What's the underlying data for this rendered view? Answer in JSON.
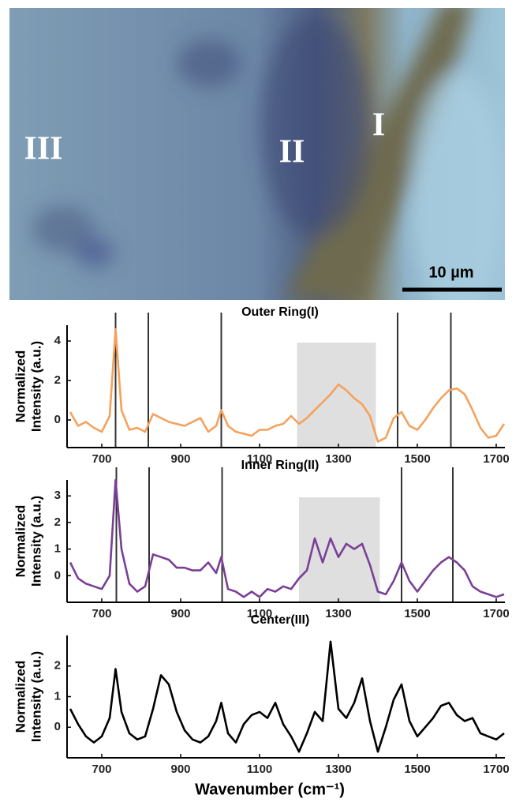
{
  "image": {
    "regions": [
      "III",
      "II",
      "I"
    ],
    "scale_bar": "10 µm"
  },
  "chart_data": [
    {
      "type": "line",
      "title": "Outer Ring(I)",
      "ylabel": [
        "Normalized",
        "Intensity (a.u.)"
      ],
      "color": "#f5a15c",
      "x": [
        620,
        640,
        660,
        680,
        700,
        720,
        735,
        750,
        770,
        790,
        810,
        830,
        850,
        870,
        890,
        910,
        930,
        950,
        970,
        990,
        1003,
        1020,
        1040,
        1060,
        1080,
        1100,
        1120,
        1140,
        1160,
        1180,
        1200,
        1220,
        1240,
        1260,
        1280,
        1300,
        1320,
        1340,
        1360,
        1380,
        1400,
        1420,
        1440,
        1460,
        1480,
        1500,
        1520,
        1540,
        1560,
        1580,
        1600,
        1620,
        1640,
        1660,
        1680,
        1700,
        1720
      ],
      "values": [
        0.4,
        -0.3,
        -0.1,
        -0.4,
        -0.6,
        0.2,
        4.6,
        0.5,
        -0.5,
        -0.4,
        -0.6,
        0.3,
        0.1,
        -0.1,
        -0.2,
        -0.3,
        -0.1,
        0.1,
        -0.6,
        -0.3,
        0.5,
        -0.3,
        -0.6,
        -0.7,
        -0.8,
        -0.5,
        -0.5,
        -0.3,
        -0.2,
        0.2,
        -0.2,
        0.1,
        0.5,
        0.9,
        1.3,
        1.8,
        1.5,
        1.1,
        0.8,
        0.2,
        -1.1,
        -0.9,
        0.1,
        0.4,
        -0.3,
        -0.5,
        0.0,
        0.6,
        1.1,
        1.5,
        1.6,
        1.3,
        0.5,
        -0.4,
        -0.9,
        -0.8,
        -0.2
      ],
      "vlines": [
        735,
        818,
        1003,
        1450,
        1585
      ],
      "span": [
        1195,
        1395
      ],
      "xlim": [
        612,
        1722
      ],
      "ylim": [
        -1.4,
        4.8
      ],
      "xticks": [
        700,
        900,
        1100,
        1300,
        1500,
        1700
      ],
      "yticks": [
        0,
        2,
        4
      ]
    },
    {
      "type": "line",
      "title": "Inner Ring(II)",
      "ylabel": [
        "Normalized",
        "Intensity (a.u.)"
      ],
      "color": "#7a3f96",
      "x": [
        620,
        640,
        660,
        680,
        700,
        720,
        735,
        750,
        770,
        790,
        810,
        830,
        850,
        870,
        890,
        910,
        930,
        950,
        970,
        990,
        1003,
        1020,
        1040,
        1060,
        1080,
        1100,
        1120,
        1140,
        1160,
        1180,
        1200,
        1220,
        1240,
        1260,
        1280,
        1300,
        1320,
        1340,
        1360,
        1380,
        1400,
        1420,
        1440,
        1460,
        1480,
        1500,
        1520,
        1540,
        1560,
        1580,
        1600,
        1620,
        1640,
        1660,
        1680,
        1700,
        1720
      ],
      "values": [
        0.5,
        -0.1,
        -0.3,
        -0.4,
        -0.5,
        0.0,
        3.6,
        1.0,
        -0.3,
        -0.6,
        -0.4,
        0.8,
        0.7,
        0.6,
        0.3,
        0.3,
        0.2,
        0.2,
        0.5,
        0.1,
        0.7,
        -0.5,
        -0.6,
        -0.8,
        -0.6,
        -0.8,
        -0.5,
        -0.6,
        -0.4,
        -0.5,
        -0.1,
        0.2,
        1.4,
        0.5,
        1.4,
        0.7,
        1.2,
        1.0,
        1.2,
        0.4,
        -0.6,
        -0.7,
        -0.2,
        0.5,
        -0.2,
        -0.6,
        -0.2,
        0.2,
        0.5,
        0.7,
        0.5,
        0.2,
        -0.4,
        -0.6,
        -0.7,
        -0.8,
        -0.7
      ],
      "vlines": [
        737,
        820,
        1005,
        1460,
        1590
      ],
      "span": [
        1200,
        1405
      ],
      "xlim": [
        612,
        1722
      ],
      "ylim": [
        -1.0,
        3.6
      ],
      "xticks": [
        700,
        900,
        1100,
        1300,
        1500,
        1700
      ],
      "yticks": [
        0,
        1,
        2,
        3
      ]
    },
    {
      "type": "line",
      "title": "Center(III)",
      "ylabel": [
        "Normalized",
        "Intensity (a.u.)"
      ],
      "xlabel": "Wavenumber (cm⁻¹)",
      "color": "#000000",
      "x": [
        620,
        640,
        660,
        680,
        700,
        720,
        735,
        750,
        770,
        790,
        810,
        830,
        850,
        870,
        890,
        910,
        930,
        950,
        970,
        990,
        1003,
        1020,
        1040,
        1060,
        1080,
        1100,
        1120,
        1140,
        1160,
        1180,
        1200,
        1220,
        1240,
        1260,
        1280,
        1300,
        1320,
        1340,
        1360,
        1380,
        1400,
        1420,
        1440,
        1460,
        1480,
        1500,
        1520,
        1540,
        1560,
        1580,
        1600,
        1620,
        1640,
        1660,
        1680,
        1700,
        1720
      ],
      "values": [
        0.6,
        0.1,
        -0.3,
        -0.5,
        -0.3,
        0.3,
        1.9,
        0.5,
        -0.2,
        -0.4,
        -0.3,
        0.6,
        1.7,
        1.4,
        0.5,
        -0.1,
        -0.4,
        -0.5,
        -0.3,
        0.2,
        0.8,
        -0.2,
        -0.5,
        0.1,
        0.4,
        0.5,
        0.3,
        0.8,
        0.1,
        -0.3,
        -0.8,
        -0.2,
        0.5,
        0.2,
        2.8,
        0.6,
        0.3,
        0.8,
        1.6,
        0.2,
        -0.8,
        0.0,
        0.9,
        1.4,
        0.2,
        -0.3,
        0.0,
        0.3,
        0.7,
        0.8,
        0.4,
        0.2,
        0.3,
        -0.2,
        -0.3,
        -0.4,
        -0.2
      ],
      "xlim": [
        612,
        1722
      ],
      "ylim": [
        -1.0,
        3.0
      ],
      "xticks": [
        700,
        900,
        1100,
        1300,
        1500,
        1700
      ],
      "yticks": [
        0,
        1,
        2
      ]
    }
  ]
}
